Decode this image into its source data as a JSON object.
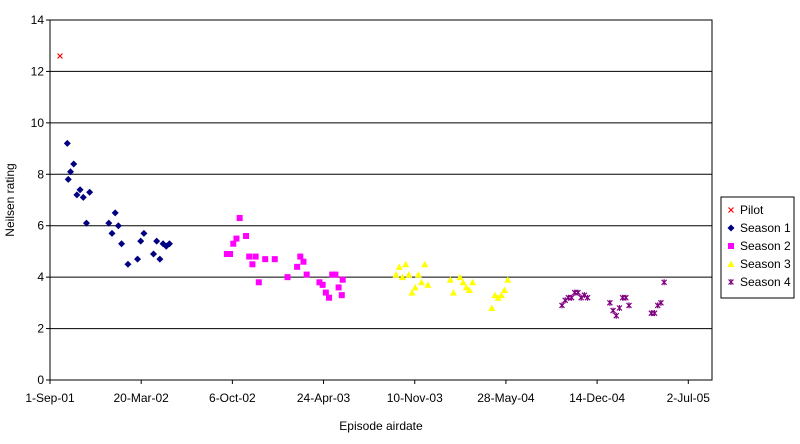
{
  "chart_data": {
    "type": "scatter",
    "title": "",
    "xlabel": "Episode airdate",
    "ylabel": "Neilsen rating",
    "ylim": [
      0,
      14
    ],
    "y_ticks": [
      "0",
      "2",
      "4",
      "6",
      "8",
      "10",
      "12",
      "14"
    ],
    "xlim": [
      "2001-09-01",
      "2005-08-23"
    ],
    "x_ticks": [
      {
        "label": "1-Sep-01",
        "date": "2001-09-01"
      },
      {
        "label": "20-Mar-02",
        "date": "2002-03-20"
      },
      {
        "label": "6-Oct-02",
        "date": "2002-10-06"
      },
      {
        "label": "24-Apr-03",
        "date": "2003-04-24"
      },
      {
        "label": "10-Nov-03",
        "date": "2003-11-10"
      },
      {
        "label": "28-May-04",
        "date": "2004-05-28"
      },
      {
        "label": "14-Dec-04",
        "date": "2004-12-14"
      },
      {
        "label": "2-Jul-05",
        "date": "2005-07-02"
      }
    ],
    "grid": "horizontal",
    "legend_position": "right",
    "series": [
      {
        "name": "Pilot",
        "marker": "x",
        "color": "#ff0000",
        "points": [
          [
            "2001-09-23",
            12.6
          ]
        ]
      },
      {
        "name": "Season 1",
        "marker": "diamond",
        "color": "#000080",
        "points": [
          [
            "2001-10-09",
            9.2
          ],
          [
            "2001-10-11",
            7.8
          ],
          [
            "2001-10-16",
            8.1
          ],
          [
            "2001-10-23",
            8.4
          ],
          [
            "2001-10-30",
            7.2
          ],
          [
            "2001-11-06",
            7.4
          ],
          [
            "2001-11-13",
            7.1
          ],
          [
            "2001-11-20",
            6.1
          ],
          [
            "2001-11-27",
            7.3
          ],
          [
            "2002-01-08",
            6.1
          ],
          [
            "2002-01-15",
            5.7
          ],
          [
            "2002-01-22",
            6.5
          ],
          [
            "2002-01-29",
            6.0
          ],
          [
            "2002-02-05",
            5.3
          ],
          [
            "2002-02-19",
            4.5
          ],
          [
            "2002-03-12",
            4.7
          ],
          [
            "2002-03-19",
            5.4
          ],
          [
            "2002-03-26",
            5.7
          ],
          [
            "2002-04-16",
            4.9
          ],
          [
            "2002-04-23",
            5.4
          ],
          [
            "2002-04-30",
            4.7
          ],
          [
            "2002-05-07",
            5.3
          ],
          [
            "2002-05-14",
            5.2
          ],
          [
            "2002-05-21",
            5.3
          ]
        ]
      },
      {
        "name": "Season 2",
        "marker": "square",
        "color": "#ff00ff",
        "points": [
          [
            "2002-09-24",
            4.9
          ],
          [
            "2002-10-01",
            4.9
          ],
          [
            "2002-10-08",
            5.3
          ],
          [
            "2002-10-15",
            5.5
          ],
          [
            "2002-10-22",
            6.3
          ],
          [
            "2002-11-05",
            5.6
          ],
          [
            "2002-11-12",
            4.8
          ],
          [
            "2002-11-19",
            4.5
          ],
          [
            "2002-11-26",
            4.8
          ],
          [
            "2002-12-03",
            3.8
          ],
          [
            "2002-12-17",
            4.7
          ],
          [
            "2003-01-07",
            4.7
          ],
          [
            "2003-02-04",
            4.0
          ],
          [
            "2003-02-25",
            4.4
          ],
          [
            "2003-03-04",
            4.8
          ],
          [
            "2003-03-11",
            4.6
          ],
          [
            "2003-03-18",
            4.1
          ],
          [
            "2003-04-15",
            3.8
          ],
          [
            "2003-04-22",
            3.7
          ],
          [
            "2003-04-29",
            3.4
          ],
          [
            "2003-05-06",
            3.2
          ],
          [
            "2003-05-13",
            4.1
          ],
          [
            "2003-05-20",
            4.1
          ],
          [
            "2003-05-27",
            3.6
          ],
          [
            "2003-06-03",
            3.3
          ],
          [
            "2003-06-05",
            3.9
          ]
        ]
      },
      {
        "name": "Season 3",
        "marker": "triangle",
        "color": "#ffff00",
        "points": [
          [
            "2003-09-30",
            4.1
          ],
          [
            "2003-10-07",
            4.4
          ],
          [
            "2003-10-14",
            4.0
          ],
          [
            "2003-10-21",
            4.5
          ],
          [
            "2003-10-28",
            4.1
          ],
          [
            "2003-11-04",
            3.4
          ],
          [
            "2003-11-11",
            3.6
          ],
          [
            "2003-11-18",
            4.1
          ],
          [
            "2003-11-25",
            3.8
          ],
          [
            "2003-12-02",
            4.5
          ],
          [
            "2003-12-09",
            3.7
          ],
          [
            "2004-01-27",
            3.9
          ],
          [
            "2004-02-03",
            3.4
          ],
          [
            "2004-02-17",
            4.0
          ],
          [
            "2004-02-24",
            3.8
          ],
          [
            "2004-03-02",
            3.6
          ],
          [
            "2004-03-09",
            3.5
          ],
          [
            "2004-03-16",
            3.8
          ],
          [
            "2004-04-27",
            2.8
          ],
          [
            "2004-05-04",
            3.3
          ],
          [
            "2004-05-11",
            3.2
          ],
          [
            "2004-05-18",
            3.3
          ],
          [
            "2004-05-25",
            3.5
          ],
          [
            "2004-06-01",
            3.9
          ]
        ]
      },
      {
        "name": "Season 4",
        "marker": "star",
        "color": "#800080",
        "points": [
          [
            "2004-09-28",
            2.9
          ],
          [
            "2004-10-05",
            3.1
          ],
          [
            "2004-10-12",
            3.2
          ],
          [
            "2004-10-19",
            3.2
          ],
          [
            "2004-10-26",
            3.4
          ],
          [
            "2004-11-02",
            3.4
          ],
          [
            "2004-11-09",
            3.2
          ],
          [
            "2004-11-16",
            3.3
          ],
          [
            "2004-11-23",
            3.2
          ],
          [
            "2005-01-11",
            3.0
          ],
          [
            "2005-01-18",
            2.7
          ],
          [
            "2005-01-25",
            2.5
          ],
          [
            "2005-02-01",
            2.8
          ],
          [
            "2005-02-08",
            3.2
          ],
          [
            "2005-02-15",
            3.2
          ],
          [
            "2005-02-22",
            2.9
          ],
          [
            "2005-04-12",
            2.6
          ],
          [
            "2005-04-19",
            2.6
          ],
          [
            "2005-04-26",
            2.9
          ],
          [
            "2005-05-03",
            3.0
          ],
          [
            "2005-05-10",
            3.8
          ]
        ]
      }
    ]
  }
}
